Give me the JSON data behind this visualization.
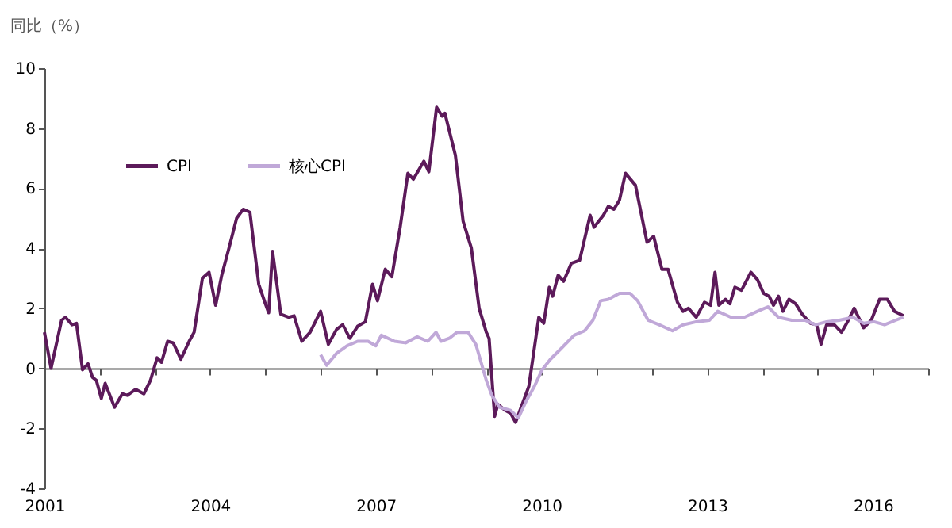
{
  "chart_data": {
    "type": "line",
    "ylabel": "同比（%）",
    "legend": "top left",
    "xlim": [
      2001,
      2017
    ],
    "ylim": [
      -4,
      10
    ],
    "yticks": [
      -4,
      -2,
      0,
      2,
      4,
      6,
      8,
      10
    ],
    "xticks": [
      2001,
      {
        "value": 2002,
        "label": null
      },
      {
        "value": 2003,
        "label": null
      },
      2004,
      {
        "value": 2005,
        "label": null
      },
      {
        "value": 2006,
        "label": null
      },
      2007,
      {
        "value": 2008,
        "label": null
      },
      {
        "value": 2009,
        "label": null
      },
      2010,
      {
        "value": 2011,
        "label": null
      },
      {
        "value": 2012,
        "label": null
      },
      2013,
      {
        "value": 2014,
        "label": null
      },
      {
        "value": 2015,
        "label": null
      },
      2016,
      {
        "value": 2017,
        "label": null
      }
    ],
    "series": [
      {
        "name": "CPI",
        "color": "#5c1a5a",
        "x": [
          2001.0,
          2001.12,
          2001.31,
          2001.38,
          2001.5,
          2001.58,
          2001.69,
          2001.79,
          2001.87,
          2001.94,
          2002.03,
          2002.1,
          2002.27,
          2002.41,
          2002.5,
          2002.65,
          2002.8,
          2002.92,
          2003.04,
          2003.12,
          2003.23,
          2003.33,
          2003.47,
          2003.62,
          2003.71,
          2003.86,
          2003.98,
          2004.1,
          2004.21,
          2004.34,
          2004.48,
          2004.6,
          2004.72,
          2004.88,
          2005.0,
          2005.06,
          2005.13,
          2005.28,
          2005.42,
          2005.52,
          2005.66,
          2005.81,
          2006.0,
          2006.14,
          2006.29,
          2006.4,
          2006.53,
          2006.67,
          2006.81,
          2006.94,
          2007.03,
          2007.17,
          2007.29,
          2007.44,
          2007.58,
          2007.68,
          2007.87,
          2007.96,
          2008.1,
          2008.2,
          2008.25,
          2008.44,
          2008.58,
          2008.73,
          2008.87,
          2009.0,
          2009.05,
          2009.15,
          2009.21,
          2009.34,
          2009.44,
          2009.53,
          2009.63,
          2009.77,
          2009.95,
          2010.04,
          2010.14,
          2010.2,
          2010.3,
          2010.4,
          2010.54,
          2010.69,
          2010.88,
          2010.95,
          2011.12,
          2011.21,
          2011.31,
          2011.41,
          2011.52,
          2011.7,
          2011.91,
          2012.03,
          2012.18,
          2012.29,
          2012.46,
          2012.56,
          2012.66,
          2012.8,
          2012.95,
          2013.06,
          2013.14,
          2013.21,
          2013.33,
          2013.41,
          2013.5,
          2013.62,
          2013.79,
          2013.91,
          2014.02,
          2014.12,
          2014.2,
          2014.29,
          2014.37,
          2014.48,
          2014.6,
          2014.72,
          2014.87,
          2014.98,
          2015.06,
          2015.16,
          2015.3,
          2015.43,
          2015.54,
          2015.66,
          2015.83,
          2015.97,
          2016.12,
          2016.26,
          2016.39,
          2016.55
        ],
        "values": [
          1.2,
          0,
          1.6,
          1.7,
          1.45,
          1.5,
          -0.05,
          0.15,
          -0.3,
          -0.4,
          -1.0,
          -0.5,
          -1.3,
          -0.85,
          -0.9,
          -0.7,
          -0.85,
          -0.4,
          0.35,
          0.2,
          0.9,
          0.85,
          0.3,
          0.9,
          1.2,
          3.0,
          3.2,
          2.1,
          3.1,
          4.0,
          5.0,
          5.3,
          5.2,
          2.8,
          2.15,
          1.85,
          3.9,
          1.8,
          1.7,
          1.75,
          0.9,
          1.2,
          1.9,
          0.8,
          1.3,
          1.45,
          1.0,
          1.4,
          1.55,
          2.8,
          2.25,
          3.3,
          3.05,
          4.7,
          6.5,
          6.3,
          6.9,
          6.55,
          8.7,
          8.4,
          8.5,
          7.1,
          4.9,
          4.0,
          2.0,
          1.2,
          1.0,
          -1.6,
          -1.2,
          -1.4,
          -1.5,
          -1.8,
          -1.3,
          -0.6,
          1.7,
          1.5,
          2.7,
          2.4,
          3.1,
          2.9,
          3.5,
          3.6,
          5.1,
          4.7,
          5.1,
          5.4,
          5.3,
          5.6,
          6.5,
          6.1,
          4.2,
          4.4,
          3.3,
          3.3,
          2.2,
          1.9,
          2.0,
          1.7,
          2.2,
          2.1,
          3.2,
          2.1,
          2.3,
          2.15,
          2.7,
          2.6,
          3.2,
          2.95,
          2.5,
          2.4,
          2.1,
          2.4,
          1.9,
          2.3,
          2.15,
          1.8,
          1.5,
          1.45,
          0.8,
          1.45,
          1.45,
          1.2,
          1.55,
          2.0,
          1.35,
          1.6,
          2.3,
          2.3,
          1.9,
          1.75
        ]
      },
      {
        "name": "核心CPI",
        "color": "#c0a8d8",
        "x": [
          2006.0,
          2006.11,
          2006.29,
          2006.48,
          2006.67,
          2006.86,
          2007.0,
          2007.1,
          2007.34,
          2007.54,
          2007.75,
          2007.94,
          2008.09,
          2008.18,
          2008.33,
          2008.47,
          2008.67,
          2008.81,
          2009.0,
          2009.1,
          2009.24,
          2009.44,
          2009.58,
          2009.72,
          2009.87,
          2010.01,
          2010.16,
          2010.35,
          2010.59,
          2010.78,
          2010.93,
          2011.07,
          2011.21,
          2011.41,
          2011.6,
          2011.74,
          2011.93,
          2012.13,
          2012.37,
          2012.56,
          2012.8,
          2013.04,
          2013.19,
          2013.43,
          2013.67,
          2013.91,
          2014.1,
          2014.29,
          2014.53,
          2014.77,
          2014.96,
          2015.16,
          2015.39,
          2015.64,
          2015.83,
          2016.02,
          2016.21,
          2016.41,
          2016.55
        ],
        "values": [
          0.45,
          0.1,
          0.5,
          0.75,
          0.9,
          0.9,
          0.75,
          1.1,
          0.9,
          0.85,
          1.05,
          0.9,
          1.2,
          0.9,
          1.0,
          1.2,
          1.2,
          0.8,
          -0.4,
          -0.9,
          -1.3,
          -1.4,
          -1.65,
          -1.1,
          -0.6,
          -0.05,
          0.3,
          0.65,
          1.1,
          1.25,
          1.6,
          2.25,
          2.3,
          2.5,
          2.5,
          2.25,
          1.6,
          1.45,
          1.25,
          1.45,
          1.55,
          1.6,
          1.9,
          1.7,
          1.7,
          1.9,
          2.05,
          1.7,
          1.6,
          1.6,
          1.45,
          1.55,
          1.6,
          1.7,
          1.5,
          1.55,
          1.45,
          1.6,
          1.7
        ]
      }
    ]
  }
}
